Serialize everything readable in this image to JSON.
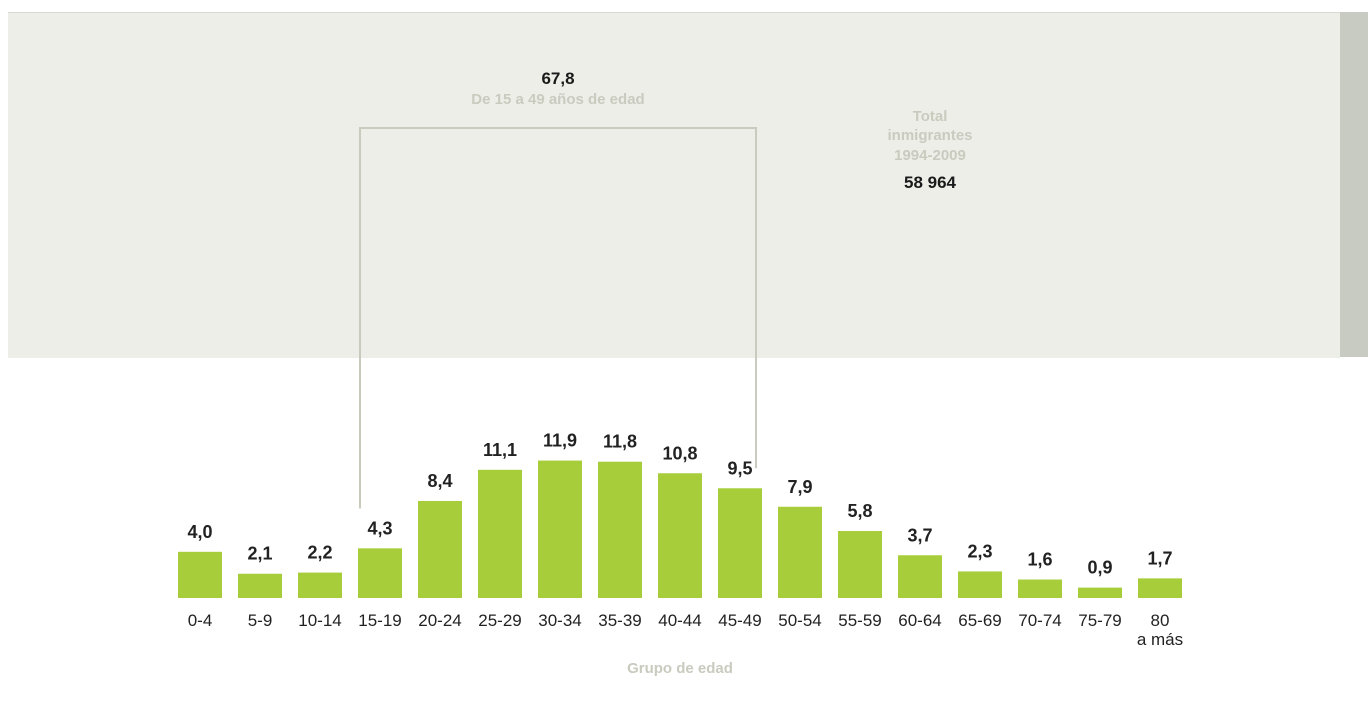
{
  "chart_data": {
    "type": "bar",
    "xlabel": "Grupo de edad",
    "categories": [
      "0-4",
      "5-9",
      "10-14",
      "15-19",
      "20-24",
      "25-29",
      "30-34",
      "35-39",
      "40-44",
      "45-49",
      "50-54",
      "55-59",
      "60-64",
      "65-69",
      "70-74",
      "75-79",
      "80 a más"
    ],
    "value_labels": [
      "4,0",
      "2,1",
      "2,2",
      "4,3",
      "8,4",
      "11,1",
      "11,9",
      "11,8",
      "10,8",
      "9,5",
      "7,9",
      "5,8",
      "3,7",
      "2,3",
      "1,6",
      "0,9",
      "1,7"
    ],
    "values": [
      4.0,
      2.1,
      2.2,
      4.3,
      8.4,
      11.1,
      11.9,
      11.8,
      10.8,
      9.5,
      7.9,
      5.8,
      3.7,
      2.3,
      1.6,
      0.9,
      1.7
    ],
    "bar_color": "#a7ce3a",
    "grid": false
  },
  "bracket": {
    "value": "67,8",
    "label": "De 15 a 49 años de edad",
    "from_category": "15-19",
    "to_category": "45-49",
    "color": "#c9cbbf"
  },
  "total": {
    "label_lines": [
      "Total",
      "inmigrantes",
      "1994-2009"
    ],
    "value": "58 964"
  }
}
